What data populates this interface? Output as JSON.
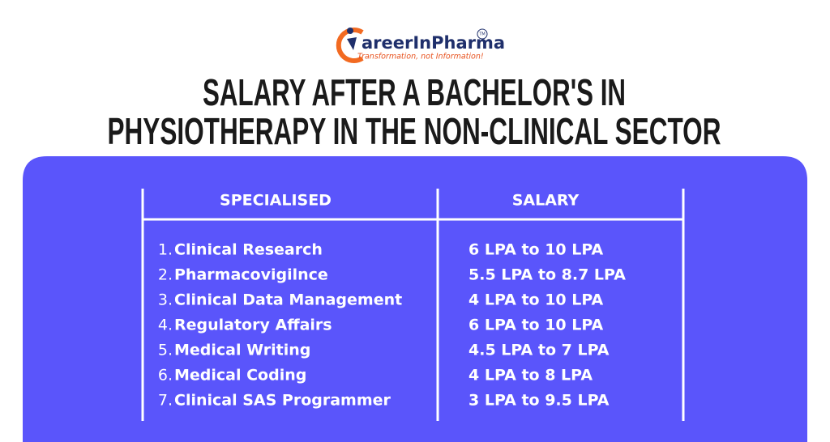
{
  "logo": {
    "name": "areerInPharma",
    "tagline": "Transformation, not Information!",
    "mark": "TM"
  },
  "title": {
    "line1": "SALARY AFTER A BACHELOR'S IN",
    "line2": "PHYSIOTHERAPY IN THE NON-CLINICAL SECTOR"
  },
  "table": {
    "headers": [
      "SPECIALISED",
      "SALARY"
    ],
    "rows": [
      [
        "1.",
        "Clinical Research",
        "6 LPA to 10 LPA"
      ],
      [
        "2.",
        "Pharmacovigilnce",
        "5.5 LPA to 8.7 LPA"
      ],
      [
        "3.",
        "Clinical Data Management",
        "4 LPA to 10 LPA"
      ],
      [
        "4.",
        "Regulatory Affairs",
        "6 LPA to 10 LPA"
      ],
      [
        "5.",
        "Medical Writing",
        "4.5 LPA to 7 LPA"
      ],
      [
        "6.",
        "Medical Coding",
        "4 LPA to 8 LPA"
      ],
      [
        "7.",
        "Clinical SAS Programmer",
        "3 LPA to 9.5 LPA"
      ]
    ]
  }
}
